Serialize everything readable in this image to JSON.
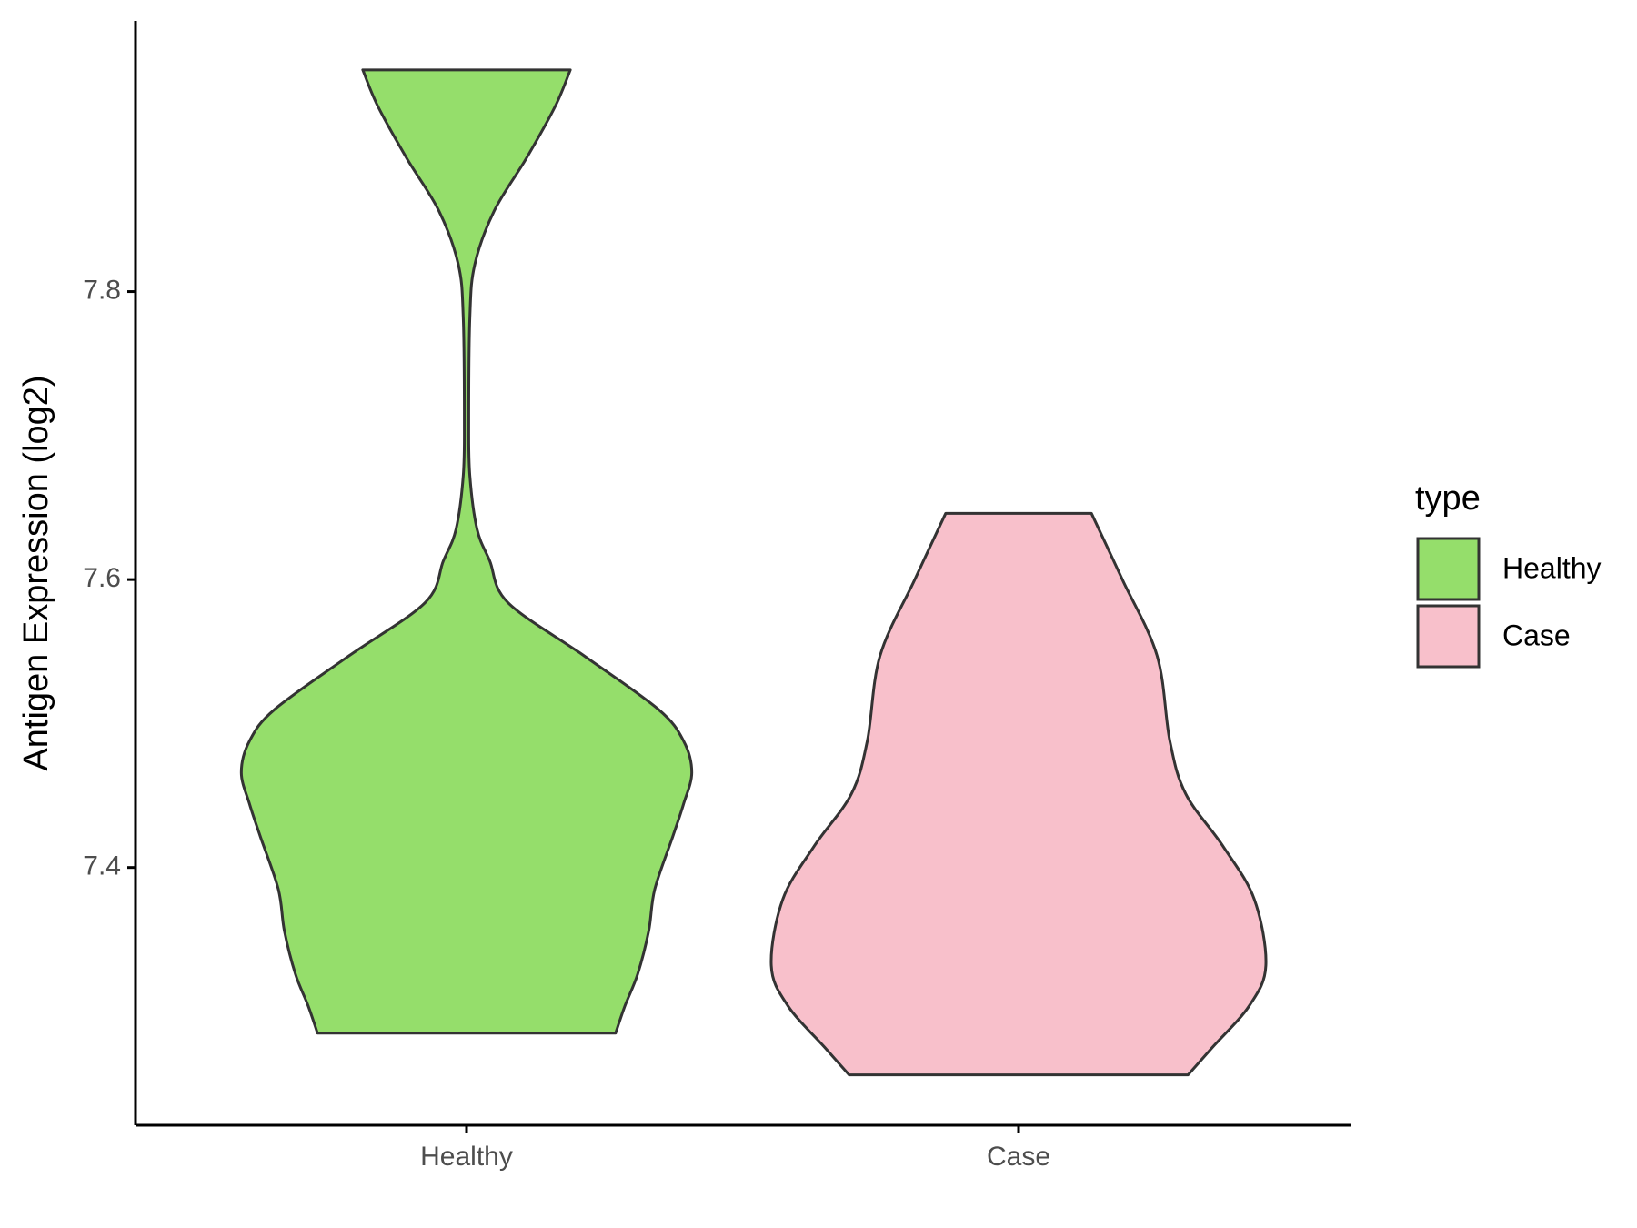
{
  "chart_data": {
    "type": "violin",
    "y_label": "Antigen Expression (log2)",
    "categories": [
      "Healthy",
      "Case"
    ],
    "ylim": [
      7.221,
      7.988
    ],
    "yticks": [
      7.4,
      7.6,
      7.8
    ],
    "legend_title": "type",
    "legend_position": "right",
    "series": [
      {
        "name": "Healthy",
        "color": "#95de6b",
        "y": [
          7.954,
          7.929,
          7.893,
          7.856,
          7.819,
          7.782,
          7.709,
          7.672,
          7.635,
          7.613,
          7.584,
          7.547,
          7.51,
          7.488,
          7.466,
          7.444,
          7.422,
          7.385,
          7.356,
          7.326,
          7.304,
          7.285
        ],
        "widths": [
          0.188,
          0.161,
          0.109,
          0.05,
          0.015,
          0.006,
          0.004,
          0.006,
          0.019,
          0.042,
          0.075,
          0.213,
          0.347,
          0.393,
          0.408,
          0.393,
          0.374,
          0.341,
          0.33,
          0.31,
          0.287,
          0.27
        ]
      },
      {
        "name": "Case",
        "color": "#f8c0cb",
        "y": [
          7.646,
          7.6,
          7.547,
          7.488,
          7.451,
          7.415,
          7.378,
          7.332,
          7.304,
          7.275,
          7.256
        ],
        "widths": [
          0.132,
          0.188,
          0.251,
          0.274,
          0.303,
          0.37,
          0.427,
          0.448,
          0.418,
          0.351,
          0.307
        ]
      }
    ]
  }
}
